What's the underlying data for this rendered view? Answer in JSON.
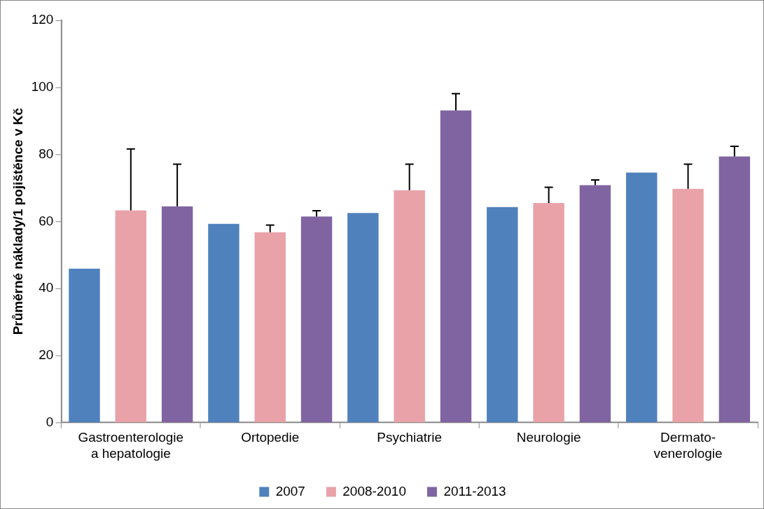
{
  "chart_data": {
    "type": "bar",
    "ylabel": "Průměrné náklady/1 pojištěnce v Kč",
    "categories": [
      "Gastroenterologie\na hepatologie",
      "Ortopedie",
      "Psychiatrie",
      "Neurologie",
      "Dermato-\nvenerologie"
    ],
    "series": [
      {
        "name": "2007",
        "color": "#4f81bd",
        "values": [
          45.9,
          59.3,
          62.5,
          64.3,
          74.6
        ]
      },
      {
        "name": "2008-2010",
        "color": "#e8a2a8",
        "values": [
          63.3,
          56.8,
          69.3,
          65.5,
          69.7
        ],
        "errors": [
          [
            63.3,
            81.6
          ],
          [
            56.8,
            58.9
          ],
          [
            69.3,
            77.1
          ],
          [
            65.5,
            70.2
          ],
          [
            69.7,
            77.1
          ]
        ]
      },
      {
        "name": "2011-2013",
        "color": "#8064a2",
        "values": [
          64.5,
          61.5,
          93.1,
          70.8,
          79.4
        ],
        "errors": [
          [
            64.5,
            77.1
          ],
          [
            61.5,
            63.2
          ],
          [
            93.1,
            98.1
          ],
          [
            70.8,
            72.4
          ],
          [
            79.4,
            82.4
          ]
        ]
      }
    ],
    "ylim": [
      0,
      120
    ],
    "yticks": [
      0,
      20,
      40,
      60,
      80,
      100,
      120
    ],
    "grid": false,
    "legend": "bottom"
  }
}
